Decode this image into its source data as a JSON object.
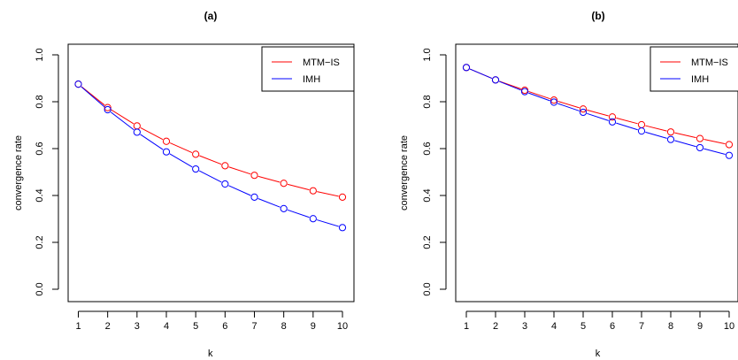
{
  "colors": {
    "mtm": "#ff0000",
    "imh": "#0000ff",
    "axis": "#000000"
  },
  "chart_data": [
    {
      "type": "line",
      "title": "(a)",
      "xlabel": "k",
      "ylabel": "convergence rate",
      "x": [
        1,
        2,
        3,
        4,
        5,
        6,
        7,
        8,
        9,
        10
      ],
      "xticks": [
        "1",
        "2",
        "3",
        "4",
        "5",
        "6",
        "7",
        "8",
        "9",
        "10"
      ],
      "yticks": [
        "0.0",
        "0.2",
        "0.4",
        "0.6",
        "0.8",
        "1.0"
      ],
      "ylim": [
        0,
        1
      ],
      "xlim": [
        1,
        10
      ],
      "legend_position": "top-right",
      "series": [
        {
          "name": "MTM−IS",
          "color": "#ff0000",
          "values": [
            0.875,
            0.775,
            0.697,
            0.631,
            0.576,
            0.527,
            0.486,
            0.452,
            0.42,
            0.393
          ]
        },
        {
          "name": "IMH",
          "color": "#0000ff",
          "values": [
            0.875,
            0.766,
            0.67,
            0.586,
            0.513,
            0.449,
            0.393,
            0.344,
            0.301,
            0.263
          ]
        }
      ]
    },
    {
      "type": "line",
      "title": "(b)",
      "xlabel": "k",
      "ylabel": "convergence rate",
      "x": [
        1,
        2,
        3,
        4,
        5,
        6,
        7,
        8,
        9,
        10
      ],
      "xticks": [
        "1",
        "2",
        "3",
        "4",
        "5",
        "6",
        "7",
        "8",
        "9",
        "10"
      ],
      "yticks": [
        "0.0",
        "0.2",
        "0.4",
        "0.6",
        "0.8",
        "1.0"
      ],
      "ylim": [
        0,
        1
      ],
      "xlim": [
        1,
        10
      ],
      "legend_position": "top-right",
      "series": [
        {
          "name": "MTM−IS",
          "color": "#ff0000",
          "values": [
            0.946,
            0.893,
            0.849,
            0.807,
            0.769,
            0.735,
            0.702,
            0.671,
            0.643,
            0.617
          ]
        },
        {
          "name": "IMH",
          "color": "#0000ff",
          "values": [
            0.946,
            0.893,
            0.843,
            0.798,
            0.755,
            0.714,
            0.675,
            0.639,
            0.604,
            0.571
          ]
        }
      ]
    }
  ]
}
